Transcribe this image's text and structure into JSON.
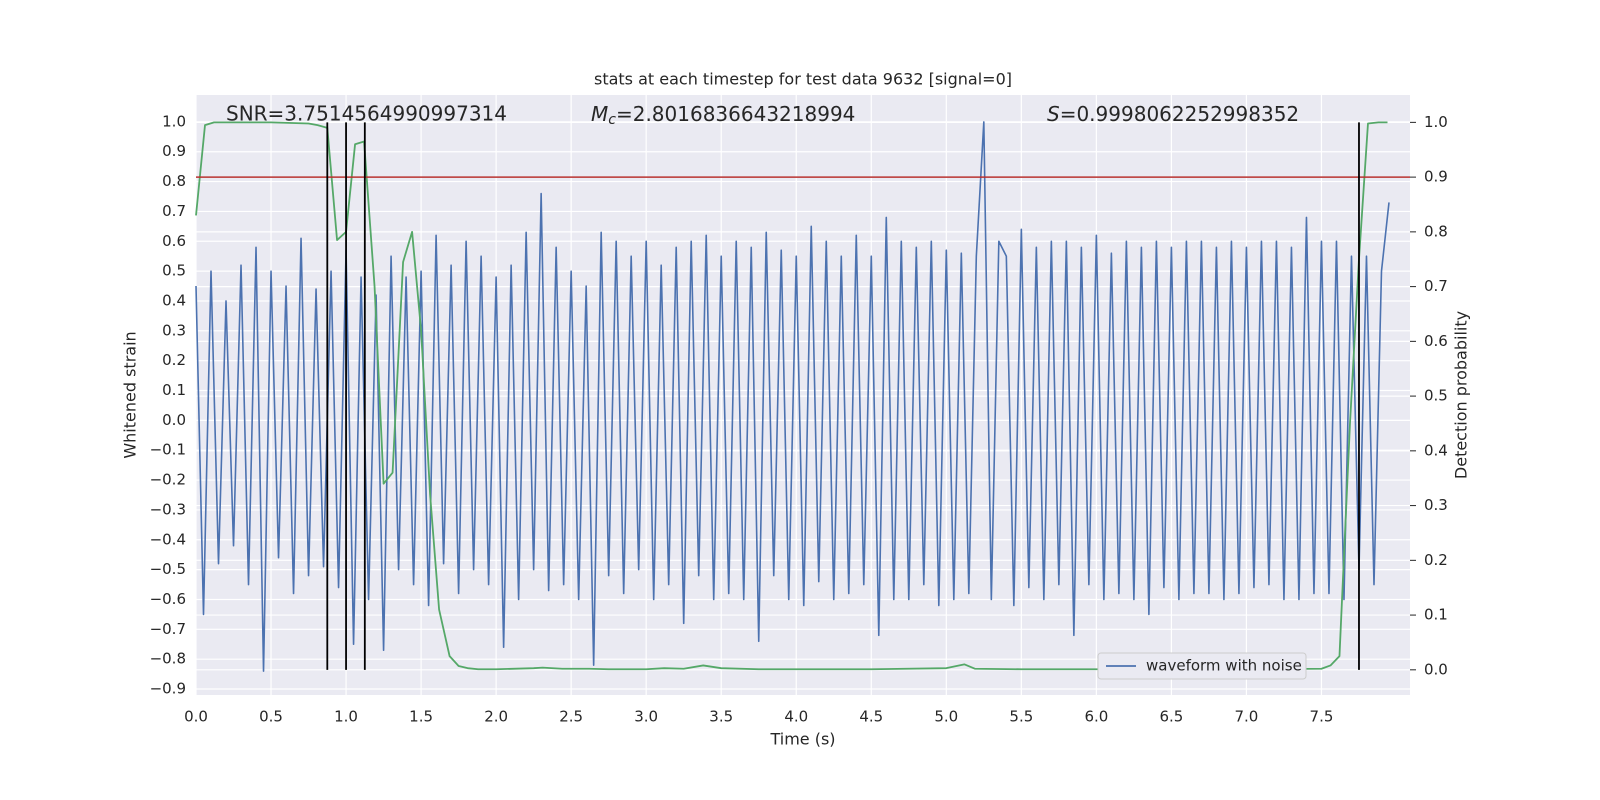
{
  "chart_data": {
    "type": "line",
    "title": "stats at each timestep for test data 9632 [signal=0]",
    "xlabel": "Time (s)",
    "ylabel": "Whitened strain",
    "y2label": "Detection probability",
    "annotations": [
      {
        "text": "SNR=3.7514564990997314"
      },
      {
        "symbol": "M",
        "subscript": "c",
        "text": "=2.8016836643218994"
      },
      {
        "symbol": "S",
        "text": "=0.9998062252998352"
      }
    ],
    "grid": true,
    "legend": "lower right",
    "xlim": [
      0,
      8.09
    ],
    "ylim": [
      -0.92,
      1.09
    ],
    "y2lim": [
      -0.046,
      1.05
    ],
    "xticks": [
      {
        "value": 0,
        "label": "0.0"
      },
      {
        "value": 0.5,
        "label": "0.5"
      },
      {
        "value": 1,
        "label": "1.0"
      },
      {
        "value": 1.5,
        "label": "1.5"
      },
      {
        "value": 2,
        "label": "2.0"
      },
      {
        "value": 2.5,
        "label": "2.5"
      },
      {
        "value": 3,
        "label": "3.0"
      },
      {
        "value": 3.5,
        "label": "3.5"
      },
      {
        "value": 4,
        "label": "4.0"
      },
      {
        "value": 4.5,
        "label": "4.5"
      },
      {
        "value": 5,
        "label": "5.0"
      },
      {
        "value": 5.5,
        "label": "5.5"
      },
      {
        "value": 6,
        "label": "6.0"
      },
      {
        "value": 6.5,
        "label": "6.5"
      },
      {
        "value": 7,
        "label": "7.0"
      },
      {
        "value": 7.5,
        "label": "7.5"
      }
    ],
    "yticks": [
      {
        "value": -0.9,
        "label": "−0.9"
      },
      {
        "value": -0.8,
        "label": "−0.8"
      },
      {
        "value": -0.7,
        "label": "−0.7"
      },
      {
        "value": -0.6,
        "label": "−0.6"
      },
      {
        "value": -0.5,
        "label": "−0.5"
      },
      {
        "value": -0.4,
        "label": "−0.4"
      },
      {
        "value": -0.3,
        "label": "−0.3"
      },
      {
        "value": -0.2,
        "label": "−0.2"
      },
      {
        "value": -0.1,
        "label": "−0.1"
      },
      {
        "value": 0,
        "label": "0.0"
      },
      {
        "value": 0.1,
        "label": "0.1"
      },
      {
        "value": 0.2,
        "label": "0.2"
      },
      {
        "value": 0.3,
        "label": "0.3"
      },
      {
        "value": 0.4,
        "label": "0.4"
      },
      {
        "value": 0.5,
        "label": "0.5"
      },
      {
        "value": 0.6,
        "label": "0.6"
      },
      {
        "value": 0.7,
        "label": "0.7"
      },
      {
        "value": 0.8,
        "label": "0.8"
      },
      {
        "value": 0.9,
        "label": "0.9"
      },
      {
        "value": 1,
        "label": "1.0"
      }
    ],
    "y2ticks": [
      {
        "value": 0,
        "label": "0.0"
      },
      {
        "value": 0.1,
        "label": "0.1"
      },
      {
        "value": 0.2,
        "label": "0.2"
      },
      {
        "value": 0.3,
        "label": "0.3"
      },
      {
        "value": 0.4,
        "label": "0.4"
      },
      {
        "value": 0.5,
        "label": "0.5"
      },
      {
        "value": 0.6,
        "label": "0.6"
      },
      {
        "value": 0.7,
        "label": "0.7"
      },
      {
        "value": 0.8,
        "label": "0.8"
      },
      {
        "value": 0.9,
        "label": "0.9"
      },
      {
        "value": 1,
        "label": "1.0"
      }
    ],
    "series": [
      {
        "name": "waveform with noise",
        "color": "#4c72b0",
        "x": [
          0,
          0.05,
          0.1,
          0.15,
          0.2,
          0.25,
          0.3,
          0.35,
          0.4,
          0.45,
          0.5,
          0.55,
          0.6,
          0.65,
          0.7,
          0.75,
          0.8,
          0.85,
          0.9,
          0.95,
          1,
          1.05,
          1.1,
          1.15,
          1.2,
          1.25,
          1.3,
          1.35,
          1.4,
          1.45,
          1.5,
          1.55,
          1.6,
          1.65,
          1.7,
          1.75,
          1.8,
          1.85,
          1.9,
          1.95,
          2,
          2.05,
          2.1,
          2.15,
          2.2,
          2.25,
          2.3,
          2.35,
          2.4,
          2.45,
          2.5,
          2.55,
          2.6,
          2.65,
          2.7,
          2.75,
          2.8,
          2.85,
          2.9,
          2.95,
          3,
          3.05,
          3.1,
          3.15,
          3.2,
          3.25,
          3.3,
          3.35,
          3.4,
          3.45,
          3.5,
          3.55,
          3.6,
          3.65,
          3.7,
          3.75,
          3.8,
          3.85,
          3.9,
          3.95,
          4,
          4.05,
          4.1,
          4.15,
          4.2,
          4.25,
          4.3,
          4.35,
          4.4,
          4.45,
          4.5,
          4.55,
          4.6,
          4.65,
          4.7,
          4.75,
          4.8,
          4.85,
          4.9,
          4.95,
          5,
          5.05,
          5.1,
          5.15,
          5.2,
          5.25,
          5.3,
          5.35,
          5.4,
          5.45,
          5.5,
          5.55,
          5.6,
          5.65,
          5.7,
          5.75,
          5.8,
          5.85,
          5.9,
          5.95,
          6,
          6.05,
          6.1,
          6.15,
          6.2,
          6.25,
          6.3,
          6.35,
          6.4,
          6.45,
          6.5,
          6.55,
          6.6,
          6.65,
          6.7,
          6.75,
          6.8,
          6.85,
          6.9,
          6.95,
          7,
          7.05,
          7.1,
          7.15,
          7.2,
          7.25,
          7.3,
          7.35,
          7.4,
          7.45,
          7.5,
          7.55,
          7.6,
          7.65,
          7.7,
          7.75,
          7.8,
          7.85,
          7.9,
          7.95
        ],
        "values": [
          0.45,
          -0.65,
          0.5,
          -0.48,
          0.4,
          -0.42,
          0.52,
          -0.55,
          0.58,
          -0.84,
          0.5,
          -0.46,
          0.45,
          -0.58,
          0.61,
          -0.52,
          0.44,
          -0.49,
          0.5,
          -0.56,
          0.57,
          -0.75,
          0.48,
          -0.6,
          0.42,
          -0.77,
          0.55,
          -0.5,
          0.48,
          -0.55,
          0.5,
          -0.62,
          0.62,
          -0.48,
          0.52,
          -0.58,
          0.6,
          -0.5,
          0.55,
          -0.55,
          0.48,
          -0.76,
          0.52,
          -0.6,
          0.63,
          -0.5,
          0.76,
          -0.57,
          0.58,
          -0.55,
          0.5,
          -0.6,
          0.45,
          -0.82,
          0.63,
          -0.52,
          0.6,
          -0.58,
          0.55,
          -0.5,
          0.6,
          -0.6,
          0.52,
          -0.55,
          0.58,
          -0.68,
          0.6,
          -0.52,
          0.62,
          -0.6,
          0.55,
          -0.58,
          0.6,
          -0.6,
          0.58,
          -0.74,
          0.63,
          -0.52,
          0.57,
          -0.6,
          0.55,
          -0.62,
          0.65,
          -0.54,
          0.6,
          -0.6,
          0.55,
          -0.58,
          0.62,
          -0.55,
          0.55,
          -0.72,
          0.68,
          -0.6,
          0.6,
          -0.6,
          0.58,
          -0.55,
          0.6,
          -0.62,
          0.57,
          -0.6,
          0.56,
          -0.58,
          0.55,
          1.0,
          -0.6,
          0.6,
          0.55,
          -0.62,
          0.64,
          -0.56,
          0.58,
          -0.6,
          0.6,
          -0.55,
          0.6,
          -0.72,
          0.58,
          -0.55,
          0.62,
          -0.6,
          0.56,
          -0.58,
          0.6,
          -0.6,
          0.58,
          -0.65,
          0.6,
          -0.56,
          0.58,
          -0.6,
          0.6,
          -0.58,
          0.6,
          -0.58,
          0.58,
          -0.6,
          0.6,
          -0.58,
          0.58,
          -0.56,
          0.6,
          -0.55,
          0.6,
          -0.6,
          0.58,
          -0.6,
          0.68,
          -0.58,
          0.6,
          -0.58,
          0.6,
          -0.6,
          0.55,
          -0.5,
          0.55,
          -0.55,
          0.5,
          0.73
        ]
      },
      {
        "color": "#55a868",
        "axis": "y2",
        "x": [
          0,
          0.06,
          0.12,
          0.25,
          0.5,
          0.75,
          0.81,
          0.875,
          0.94,
          1,
          1.06,
          1.12,
          1.19,
          1.25,
          1.31,
          1.38,
          1.44,
          1.5,
          1.56,
          1.62,
          1.69,
          1.75,
          1.81,
          1.88,
          2,
          2.25,
          2.31,
          2.44,
          2.62,
          2.75,
          3,
          3.12,
          3.25,
          3.38,
          3.5,
          3.75,
          4,
          4.5,
          5,
          5.12,
          5.19,
          5.5,
          6,
          6.5,
          7,
          7.5,
          7.56,
          7.62,
          7.69,
          7.75,
          7.81,
          7.88,
          7.94
        ],
        "values": [
          0.83,
          0.995,
          1,
          1,
          1,
          0.998,
          0.995,
          0.99,
          0.785,
          0.8,
          0.96,
          0.965,
          0.7,
          0.34,
          0.36,
          0.745,
          0.8,
          0.62,
          0.32,
          0.11,
          0.025,
          0.007,
          0.003,
          0.001,
          0.001,
          0.003,
          0.004,
          0.002,
          0.002,
          0.001,
          0.001,
          0.003,
          0.002,
          0.008,
          0.003,
          0.001,
          0.001,
          0.001,
          0.003,
          0.01,
          0.002,
          0.001,
          0.001,
          0.002,
          0.001,
          0.002,
          0.008,
          0.025,
          0.45,
          0.75,
          0.998,
          1,
          1
        ]
      }
    ],
    "vlines": {
      "x": [
        0.875,
        1.0,
        1.125,
        7.75
      ],
      "color": "#000000",
      "axis": "y2",
      "span": [
        0,
        1
      ]
    },
    "hlines": [
      {
        "y": 0.9,
        "axis": "y2",
        "color": "#b8312f"
      }
    ]
  }
}
